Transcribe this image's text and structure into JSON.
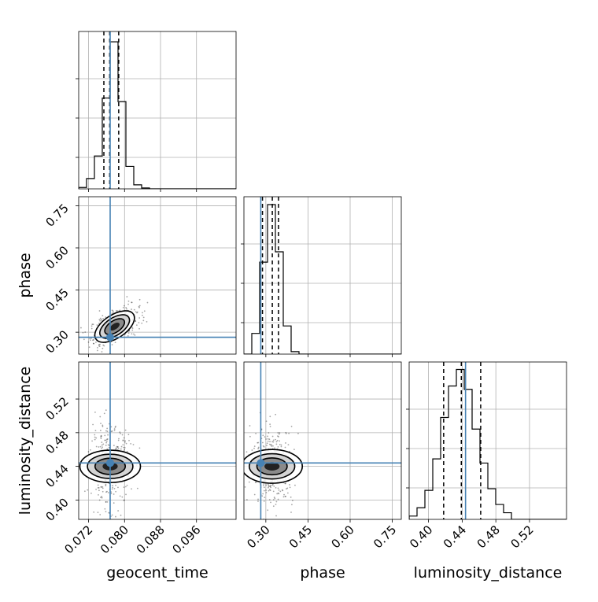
{
  "chart_data": {
    "type": "corner",
    "parameters": [
      "geocent_time",
      "phase",
      "luminosity_distance"
    ],
    "truths": {
      "geocent_time": 0.0768,
      "phase": 0.282,
      "luminosity_distance": 0.444
    },
    "quantiles": {
      "geocent_time": [
        0.0754,
        0.0767,
        0.0787
      ],
      "phase": [
        0.288,
        0.323,
        0.345
      ],
      "luminosity_distance": [
        0.418,
        0.439,
        0.462
      ]
    },
    "axes": {
      "geocent_time": {
        "range": [
          0.0698,
          0.1048
        ],
        "ticks": [
          0.072,
          0.08,
          0.088,
          0.096
        ],
        "tick_labels": [
          "0.072",
          "0.080",
          "0.088",
          "0.096"
        ]
      },
      "phase": {
        "range": [
          0.222,
          0.782
        ],
        "ticks": [
          0.3,
          0.45,
          0.6,
          0.75
        ],
        "tick_labels": [
          "0.30",
          "0.45",
          "0.60",
          "0.75"
        ]
      },
      "luminosity_distance": {
        "range": [
          0.377,
          0.564
        ],
        "ticks": [
          0.4,
          0.44,
          0.48,
          0.52
        ],
        "tick_labels": [
          "0.40",
          "0.44",
          "0.48",
          "0.52"
        ]
      }
    },
    "histograms": {
      "geocent_time": {
        "bin_edges": [
          0.0698,
          0.07155,
          0.0733,
          0.07505,
          0.0768,
          0.07855,
          0.0803,
          0.08205,
          0.0838,
          0.08555,
          0.0873,
          0.08905,
          0.0908,
          0.09255,
          0.0943,
          0.09605,
          0.0978,
          0.09955,
          0.1013,
          0.10305,
          0.1048
        ],
        "counts": [
          0.3,
          2.3,
          7.3,
          20.2,
          32.7,
          19.4,
          5.0,
          0.9,
          0.2,
          0,
          0,
          0,
          0,
          0,
          0,
          0,
          0,
          0,
          0,
          0
        ],
        "ymax": 35.0
      },
      "phase": {
        "bin_edges": [
          0.222,
          0.25,
          0.278,
          0.306,
          0.334,
          0.362,
          0.39,
          0.418,
          0.446,
          0.474,
          0.502,
          0.53,
          0.558,
          0.586,
          0.614,
          0.642,
          0.67,
          0.698,
          0.726,
          0.754,
          0.782
        ],
        "counts": [
          0,
          5.0,
          22.2,
          36.1,
          24.7,
          6.8,
          0.6,
          0,
          0,
          0,
          0,
          0,
          0,
          0,
          0,
          0,
          0,
          0,
          0,
          0
        ],
        "ymax": 38.0
      },
      "luminosity_distance": {
        "bin_edges": [
          0.377,
          0.38635,
          0.3957,
          0.40505,
          0.4144,
          0.42375,
          0.4331,
          0.44245,
          0.4518,
          0.46115,
          0.4705,
          0.47985,
          0.4892,
          0.49855,
          0.5079,
          0.51725,
          0.5266,
          0.53595,
          0.5453,
          0.55465,
          0.564
        ],
        "counts": [
          0.4,
          1.4,
          3.5,
          7.3,
          12.3,
          16.1,
          18.1,
          15.7,
          10.9,
          6.8,
          3.7,
          1.8,
          0.8,
          0,
          0,
          0,
          0,
          0,
          0,
          0
        ],
        "ymax": 19.0
      }
    },
    "joint": {
      "phase_vs_geocent_time": {
        "mean": [
          0.0778,
          0.32
        ],
        "sd": [
          0.0022,
          0.028
        ],
        "corr": 0.55,
        "n_points": 380
      },
      "luminosity_distance_vs_geocent_time": {
        "mean": [
          0.0768,
          0.44
        ],
        "sd": [
          0.0018,
          0.018
        ],
        "corr": 0.0,
        "n_points": 380
      },
      "luminosity_distance_vs_phase": {
        "mean": [
          0.322,
          0.44
        ],
        "sd": [
          0.03,
          0.018
        ],
        "corr": 0.0,
        "n_points": 380
      }
    },
    "colors": {
      "truth": "#4682b4",
      "hist": "#000000",
      "quantile": "#000000",
      "grid": "#b0b0b0",
      "contour_fill": [
        "#ffffff",
        "#d4d4d4",
        "#8a8a8a",
        "#222222"
      ]
    },
    "grid": true
  }
}
